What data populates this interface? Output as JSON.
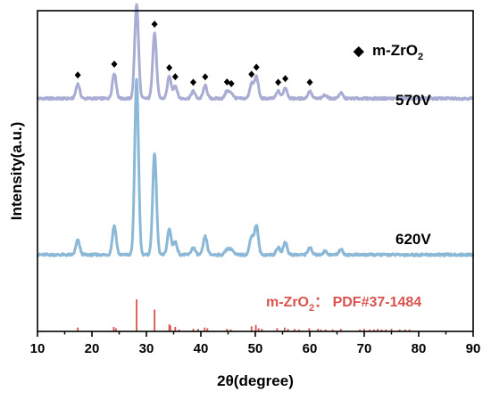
{
  "chart_data": {
    "type": "line",
    "title": "",
    "xlabel": "2θ(degree)",
    "ylabel": "Intensity(a.u.)",
    "xlim": [
      10,
      90
    ],
    "xticks": [
      10,
      20,
      30,
      40,
      50,
      60,
      70,
      80,
      90
    ],
    "y_tick_labels": false,
    "grid": false,
    "legend": {
      "marker": "◆",
      "text": "m-ZrO",
      "subscript": "2",
      "placement": "top-right"
    },
    "series": [
      {
        "name": "570V",
        "color": "#a9acd3",
        "baseline": 0.86,
        "peak_markers": [
          17.4,
          24.1,
          28.2,
          31.5,
          34.2,
          35.3,
          38.6,
          40.8,
          44.8,
          45.6,
          49.3,
          50.2,
          54.2,
          55.5,
          60.0
        ],
        "peaks": [
          {
            "x": 17.4,
            "h": 0.08
          },
          {
            "x": 24.1,
            "h": 0.14
          },
          {
            "x": 28.2,
            "h": 0.52
          },
          {
            "x": 31.5,
            "h": 0.36
          },
          {
            "x": 34.2,
            "h": 0.12
          },
          {
            "x": 35.3,
            "h": 0.07
          },
          {
            "x": 38.6,
            "h": 0.04
          },
          {
            "x": 40.8,
            "h": 0.07
          },
          {
            "x": 44.8,
            "h": 0.04
          },
          {
            "x": 45.6,
            "h": 0.03
          },
          {
            "x": 49.3,
            "h": 0.08
          },
          {
            "x": 50.2,
            "h": 0.12
          },
          {
            "x": 54.2,
            "h": 0.04
          },
          {
            "x": 55.5,
            "h": 0.06
          },
          {
            "x": 60.0,
            "h": 0.04
          },
          {
            "x": 62.8,
            "h": 0.02
          },
          {
            "x": 65.7,
            "h": 0.03
          }
        ]
      },
      {
        "name": "620V",
        "color": "#8ab8d6",
        "baseline": 0.0,
        "peaks": [
          {
            "x": 17.4,
            "h": 0.08
          },
          {
            "x": 24.1,
            "h": 0.16
          },
          {
            "x": 28.2,
            "h": 0.96
          },
          {
            "x": 31.5,
            "h": 0.56
          },
          {
            "x": 34.2,
            "h": 0.14
          },
          {
            "x": 35.3,
            "h": 0.07
          },
          {
            "x": 38.6,
            "h": 0.04
          },
          {
            "x": 40.8,
            "h": 0.1
          },
          {
            "x": 44.8,
            "h": 0.03
          },
          {
            "x": 45.6,
            "h": 0.03
          },
          {
            "x": 49.3,
            "h": 0.1
          },
          {
            "x": 50.2,
            "h": 0.16
          },
          {
            "x": 54.2,
            "h": 0.04
          },
          {
            "x": 55.5,
            "h": 0.07
          },
          {
            "x": 60.0,
            "h": 0.04
          },
          {
            "x": 62.8,
            "h": 0.02
          },
          {
            "x": 65.7,
            "h": 0.03
          }
        ]
      }
    ],
    "reference": {
      "label": "m-ZrO",
      "label_sub": "2",
      "label_rest": "：  PDF#37-1484",
      "color": "#d9544f",
      "lines": [
        {
          "x": 17.4,
          "h": 0.12
        },
        {
          "x": 24.0,
          "h": 0.14
        },
        {
          "x": 24.4,
          "h": 0.1
        },
        {
          "x": 28.2,
          "h": 1.0
        },
        {
          "x": 31.5,
          "h": 0.68
        },
        {
          "x": 34.2,
          "h": 0.22
        },
        {
          "x": 34.4,
          "h": 0.18
        },
        {
          "x": 35.3,
          "h": 0.14
        },
        {
          "x": 36.0,
          "h": 0.06
        },
        {
          "x": 38.6,
          "h": 0.08
        },
        {
          "x": 39.5,
          "h": 0.08
        },
        {
          "x": 40.7,
          "h": 0.12
        },
        {
          "x": 41.2,
          "h": 0.1
        },
        {
          "x": 44.8,
          "h": 0.08
        },
        {
          "x": 45.5,
          "h": 0.06
        },
        {
          "x": 49.3,
          "h": 0.16
        },
        {
          "x": 50.1,
          "h": 0.2
        },
        {
          "x": 50.6,
          "h": 0.1
        },
        {
          "x": 51.2,
          "h": 0.08
        },
        {
          "x": 54.0,
          "h": 0.1
        },
        {
          "x": 55.4,
          "h": 0.12
        },
        {
          "x": 56.0,
          "h": 0.08
        },
        {
          "x": 57.2,
          "h": 0.08
        },
        {
          "x": 58.0,
          "h": 0.06
        },
        {
          "x": 59.9,
          "h": 0.1
        },
        {
          "x": 61.5,
          "h": 0.08
        },
        {
          "x": 62.0,
          "h": 0.06
        },
        {
          "x": 62.9,
          "h": 0.06
        },
        {
          "x": 64.2,
          "h": 0.06
        },
        {
          "x": 65.7,
          "h": 0.08
        },
        {
          "x": 69.2,
          "h": 0.06
        },
        {
          "x": 70.0,
          "h": 0.08
        },
        {
          "x": 71.0,
          "h": 0.06
        },
        {
          "x": 71.8,
          "h": 0.06
        },
        {
          "x": 72.5,
          "h": 0.08
        },
        {
          "x": 73.2,
          "h": 0.06
        },
        {
          "x": 74.0,
          "h": 0.06
        },
        {
          "x": 75.0,
          "h": 0.08
        },
        {
          "x": 76.5,
          "h": 0.06
        },
        {
          "x": 77.5,
          "h": 0.06
        },
        {
          "x": 78.3,
          "h": 0.06
        }
      ]
    }
  }
}
